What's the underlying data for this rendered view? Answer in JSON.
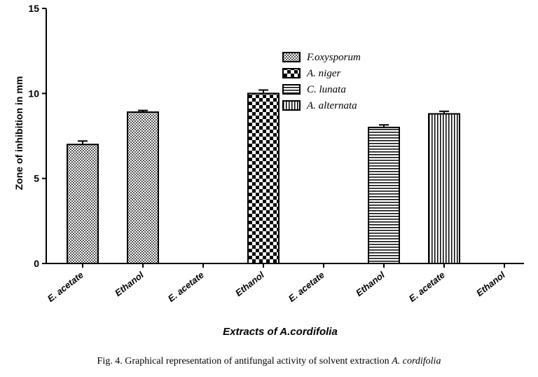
{
  "chart_data": {
    "type": "bar",
    "ylabel": "Zone of inhibition in mm",
    "xlabel": "Extracts of A.cordifolia",
    "ylim": [
      0,
      15
    ],
    "yticks": [
      0,
      5,
      10,
      15
    ],
    "categories": [
      "E. acetate",
      "Ethanol",
      "E. acetate",
      "Ethanol",
      "E. acetate",
      "Ethanol",
      "E. acetate",
      "Ethanol"
    ],
    "series": [
      {
        "name": "F.oxysporum",
        "pattern": "fine-checker",
        "values": [
          7.0,
          8.9,
          null,
          null,
          null,
          null,
          null,
          null
        ],
        "errors": [
          0.2,
          0.1,
          null,
          null,
          null,
          null,
          null,
          null
        ]
      },
      {
        "name": "A. niger",
        "pattern": "coarse-checker",
        "values": [
          null,
          null,
          0,
          10.0,
          null,
          null,
          null,
          null
        ],
        "errors": [
          null,
          null,
          null,
          0.2,
          null,
          null,
          null,
          null
        ]
      },
      {
        "name": "C. lunata",
        "pattern": "horizontal-lines",
        "values": [
          null,
          null,
          null,
          null,
          0,
          8.0,
          null,
          null
        ],
        "errors": [
          null,
          null,
          null,
          null,
          null,
          0.15,
          null,
          null
        ]
      },
      {
        "name": "A. alternata",
        "pattern": "vertical-lines",
        "values": [
          null,
          null,
          null,
          null,
          null,
          null,
          8.8,
          0
        ],
        "errors": [
          null,
          null,
          null,
          null,
          null,
          null,
          0.15,
          null
        ]
      }
    ],
    "legend_position": "top-right",
    "grid": false
  },
  "caption": {
    "prefix": "Fig. 4. Graphical representation of antifungal activity of solvent extraction ",
    "species": "A. cordifolia"
  },
  "colors": {
    "bar_fill_base": "#9a9a9a",
    "ink": "#000000"
  }
}
